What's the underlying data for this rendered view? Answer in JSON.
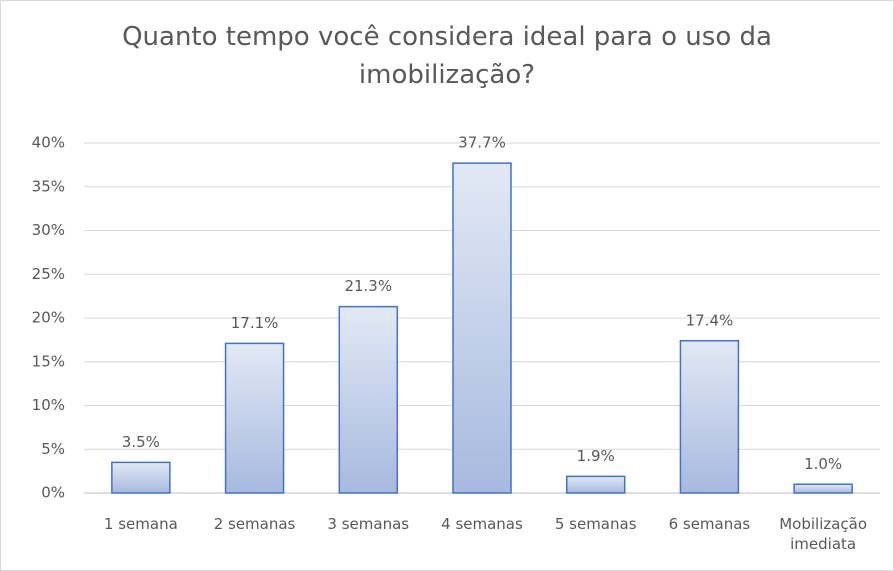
{
  "chart_data": {
    "type": "bar",
    "title": "Quanto tempo você considera ideal para o uso da imobilização?",
    "categories": [
      "1 semana",
      "2 semanas",
      "3 semanas",
      "4 semanas",
      "5 semanas",
      "6 semanas",
      "Mobilização imediata"
    ],
    "values": [
      3.5,
      17.1,
      21.3,
      37.7,
      1.9,
      17.4,
      1.0
    ],
    "value_labels": [
      "3.5%",
      "17.1%",
      "21.3%",
      "37.7%",
      "1.9%",
      "17.4%",
      "1.0%"
    ],
    "color": "#4472c4",
    "ylim": [
      0,
      40
    ],
    "yticks": [
      {
        "value": 0,
        "label": "0%"
      },
      {
        "value": 5,
        "label": "5%"
      },
      {
        "value": 10,
        "label": "10%"
      },
      {
        "value": 15,
        "label": "15%"
      },
      {
        "value": 20,
        "label": "20%"
      },
      {
        "value": 25,
        "label": "25%"
      },
      {
        "value": 30,
        "label": "30%"
      },
      {
        "value": 35,
        "label": "35%"
      },
      {
        "value": 40,
        "label": "40%"
      }
    ],
    "grid": true
  }
}
